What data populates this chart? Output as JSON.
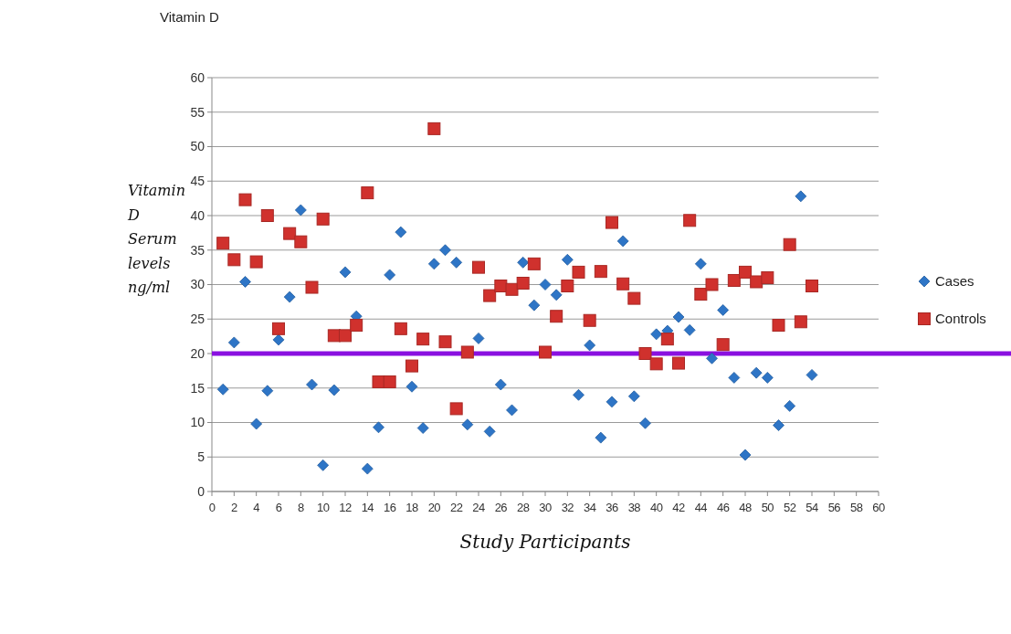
{
  "chart_data": {
    "type": "scatter",
    "title": "Vitamin D",
    "xlabel": "Study Participants",
    "ylabel": "Vitamin D Serum levels ng/ml",
    "xlim": [
      0,
      60
    ],
    "xticks": [
      0,
      2,
      4,
      6,
      8,
      10,
      12,
      14,
      16,
      18,
      20,
      22,
      24,
      26,
      28,
      30,
      32,
      34,
      36,
      38,
      40,
      42,
      44,
      46,
      48,
      50,
      52,
      54,
      56,
      58,
      60
    ],
    "ylim": [
      0,
      60
    ],
    "yticks": [
      0,
      5,
      10,
      15,
      20,
      25,
      30,
      35,
      40,
      45,
      50,
      55,
      60
    ],
    "grid": "y",
    "legend": "right",
    "x": [
      1,
      2,
      3,
      4,
      5,
      6,
      7,
      8,
      9,
      10,
      11,
      12,
      13,
      14,
      15,
      16,
      17,
      18,
      19,
      20,
      21,
      22,
      23,
      24,
      25,
      26,
      27,
      28,
      29,
      30,
      31,
      32,
      33,
      34,
      35,
      36,
      37,
      38,
      39,
      40,
      41,
      42,
      43,
      44,
      45,
      46,
      47,
      48,
      49,
      50,
      51,
      52,
      53,
      54
    ],
    "series": [
      {
        "name": "Cases",
        "color": "#2e75c6",
        "marker": "diamond",
        "values": [
          14.8,
          21.6,
          30.4,
          9.8,
          14.6,
          22,
          28.2,
          40.8,
          15.5,
          3.8,
          14.7,
          31.8,
          25.4,
          3.3,
          9.3,
          31.4,
          37.6,
          15.2,
          9.2,
          33,
          35,
          33.2,
          9.7,
          22.2,
          8.7,
          15.5,
          11.8,
          33.2,
          27,
          30,
          28.5,
          33.6,
          14,
          21.2,
          7.8,
          13,
          36.3,
          13.8,
          9.9,
          22.8,
          23.3,
          25.3,
          23.4,
          33,
          19.3,
          26.3,
          16.5,
          5.3,
          17.2,
          16.5,
          9.6,
          12.4,
          42.8,
          16.9
        ]
      },
      {
        "name": "Controls",
        "color": "#d0312d",
        "marker": "square",
        "values": [
          36,
          33.6,
          42.3,
          33.3,
          40,
          23.6,
          37.4,
          36.2,
          29.6,
          39.5,
          22.6,
          22.6,
          24.1,
          43.3,
          15.9,
          15.9,
          23.6,
          18.2,
          22.1,
          52.6,
          21.7,
          12,
          20.2,
          32.5,
          28.4,
          29.8,
          29.3,
          30.2,
          33,
          20.2,
          25.4,
          29.8,
          31.8,
          24.8,
          31.9,
          39,
          30.1,
          28,
          20,
          18.5,
          22.1,
          18.6,
          39.3,
          28.6,
          30,
          21.3,
          30.6,
          31.8,
          30.4,
          31,
          24.1,
          35.8,
          24.6,
          29.8
        ]
      }
    ],
    "ref_lines": [
      {
        "axis": "y",
        "value": 20,
        "color": "#8a10e0"
      }
    ]
  }
}
